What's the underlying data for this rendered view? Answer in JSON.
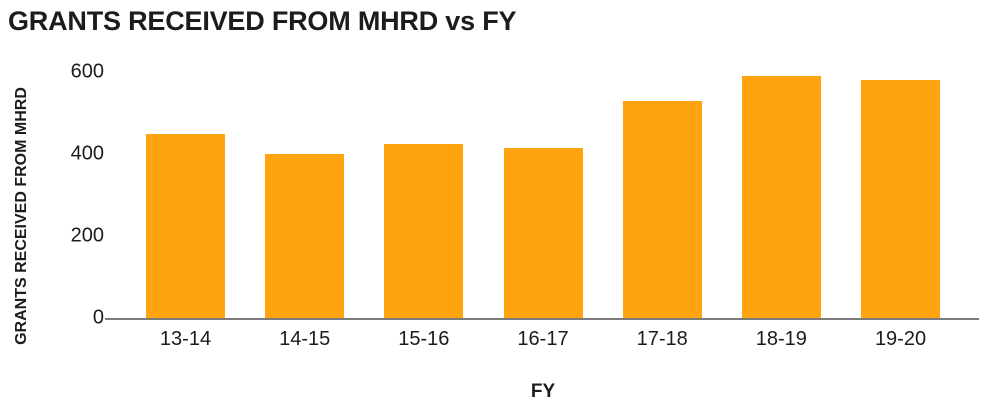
{
  "chart_data": {
    "type": "bar",
    "title": "GRANTS RECEIVED FROM MHRD vs FY",
    "xlabel": "FY",
    "ylabel": "GRANTS RECEIVED FROM MHRD",
    "categories": [
      "13-14",
      "14-15",
      "15-16",
      "16-17",
      "17-18",
      "18-19",
      "19-20"
    ],
    "values": [
      450,
      400,
      425,
      415,
      530,
      590,
      580
    ],
    "ylim": [
      0,
      600
    ],
    "yticks": [
      0,
      200,
      400,
      600
    ],
    "grid": false,
    "legend": "none",
    "bar_color": "#FFA40E",
    "axis_color": "#7C7C7C",
    "text_color": "#1B1C1E"
  }
}
